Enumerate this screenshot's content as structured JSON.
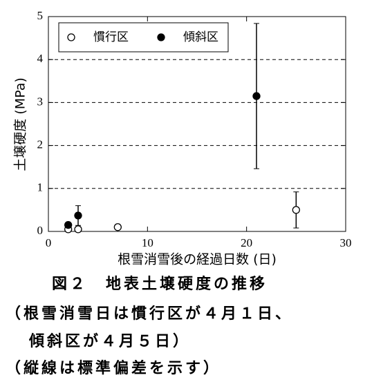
{
  "chart_data": {
    "type": "scatter",
    "y_label": "土壌硬度 (MPa)",
    "x_label": "根雪消雪後の経過日数 (日)",
    "xlim": [
      0,
      30
    ],
    "xticks": [
      0,
      10,
      20,
      30
    ],
    "ylim": [
      0,
      5
    ],
    "yticks": [
      0,
      1,
      2,
      3,
      4,
      5
    ],
    "grid": true,
    "legend": "upper left",
    "series": [
      {
        "name": "慣行区",
        "marker": "open",
        "color": "#000000",
        "x": [
          2,
          3,
          7,
          25
        ],
        "values": [
          0.05,
          0.05,
          0.1,
          0.5
        ],
        "errors": [
          null,
          null,
          null,
          0.42
        ]
      },
      {
        "name": "傾斜区",
        "marker": "filled",
        "color": "#000000",
        "x": [
          2,
          3,
          21
        ],
        "values": [
          0.15,
          0.37,
          3.15
        ],
        "errors": [
          null,
          0.23,
          1.69
        ]
      }
    ],
    "caption": [
      "図２　地表土壌硬度の推移",
      "（根雪消雪日は慣行区が４月１日、",
      "傾斜区が４月５日）",
      "（縦線は標準偏差を示す）"
    ]
  }
}
